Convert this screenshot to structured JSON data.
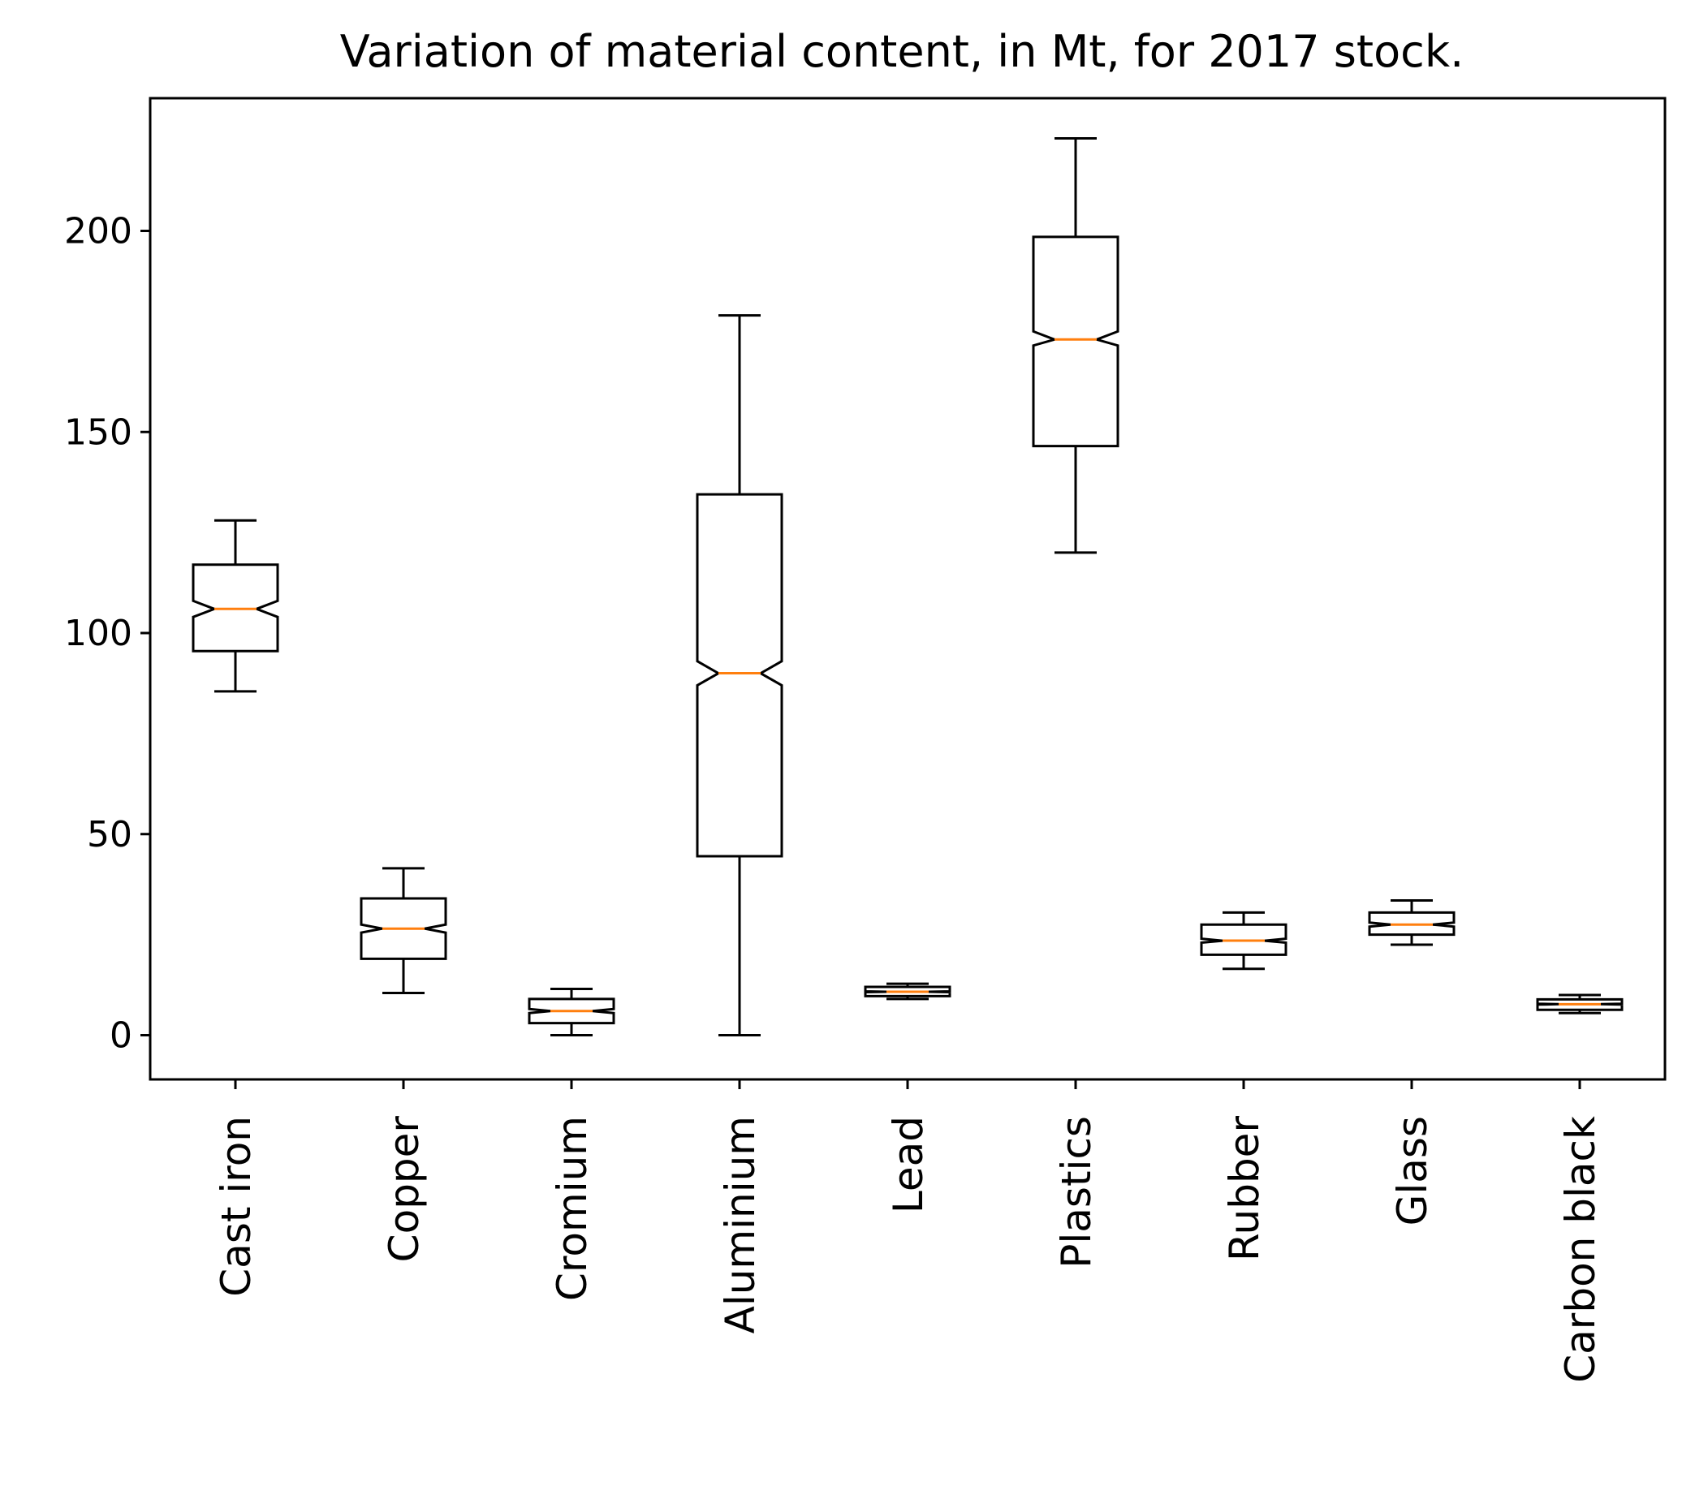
{
  "chart_data": {
    "type": "box",
    "title": "Variation of material content, in Mt, for 2017 stock.",
    "xlabel": "",
    "ylabel": "",
    "notched": true,
    "ylim": [
      -11,
      233
    ],
    "yticks": [
      0,
      50,
      100,
      150,
      200
    ],
    "grid": false,
    "colors": {
      "box": "#000000",
      "median": "#ff7f0e"
    },
    "categories": [
      "Cast iron",
      "Copper",
      "Cromium",
      "Aluminium",
      "Lead",
      "Plastics",
      "Rubber",
      "Glass",
      "Carbon black"
    ],
    "series": [
      {
        "whisker_low": 85.5,
        "q1": 95.5,
        "median": 106,
        "q3": 117,
        "whisker_high": 128,
        "notch_low": 104,
        "notch_high": 108
      },
      {
        "whisker_low": 10.5,
        "q1": 19,
        "median": 26.5,
        "q3": 34,
        "whisker_high": 41.5,
        "notch_low": 25.5,
        "notch_high": 27.5
      },
      {
        "whisker_low": 0,
        "q1": 3,
        "median": 6,
        "q3": 9,
        "whisker_high": 11.5,
        "notch_low": 5.5,
        "notch_high": 6.5
      },
      {
        "whisker_low": 0,
        "q1": 44.5,
        "median": 90,
        "q3": 134.5,
        "whisker_high": 179,
        "notch_low": 87,
        "notch_high": 93
      },
      {
        "whisker_low": 9,
        "q1": 9.7,
        "median": 10.8,
        "q3": 12,
        "whisker_high": 12.8,
        "notch_low": 10.7,
        "notch_high": 10.9
      },
      {
        "whisker_low": 120,
        "q1": 146.5,
        "median": 173,
        "q3": 198.5,
        "whisker_high": 223,
        "notch_low": 171.5,
        "notch_high": 175
      },
      {
        "whisker_low": 16.5,
        "q1": 20,
        "median": 23.5,
        "q3": 27.5,
        "whisker_high": 30.5,
        "notch_low": 23,
        "notch_high": 24
      },
      {
        "whisker_low": 22.5,
        "q1": 25,
        "median": 27.5,
        "q3": 30.5,
        "whisker_high": 33.5,
        "notch_low": 27,
        "notch_high": 28
      },
      {
        "whisker_low": 5.5,
        "q1": 6.3,
        "median": 7.7,
        "q3": 8.9,
        "whisker_high": 10,
        "notch_low": 7.6,
        "notch_high": 7.8
      }
    ]
  }
}
